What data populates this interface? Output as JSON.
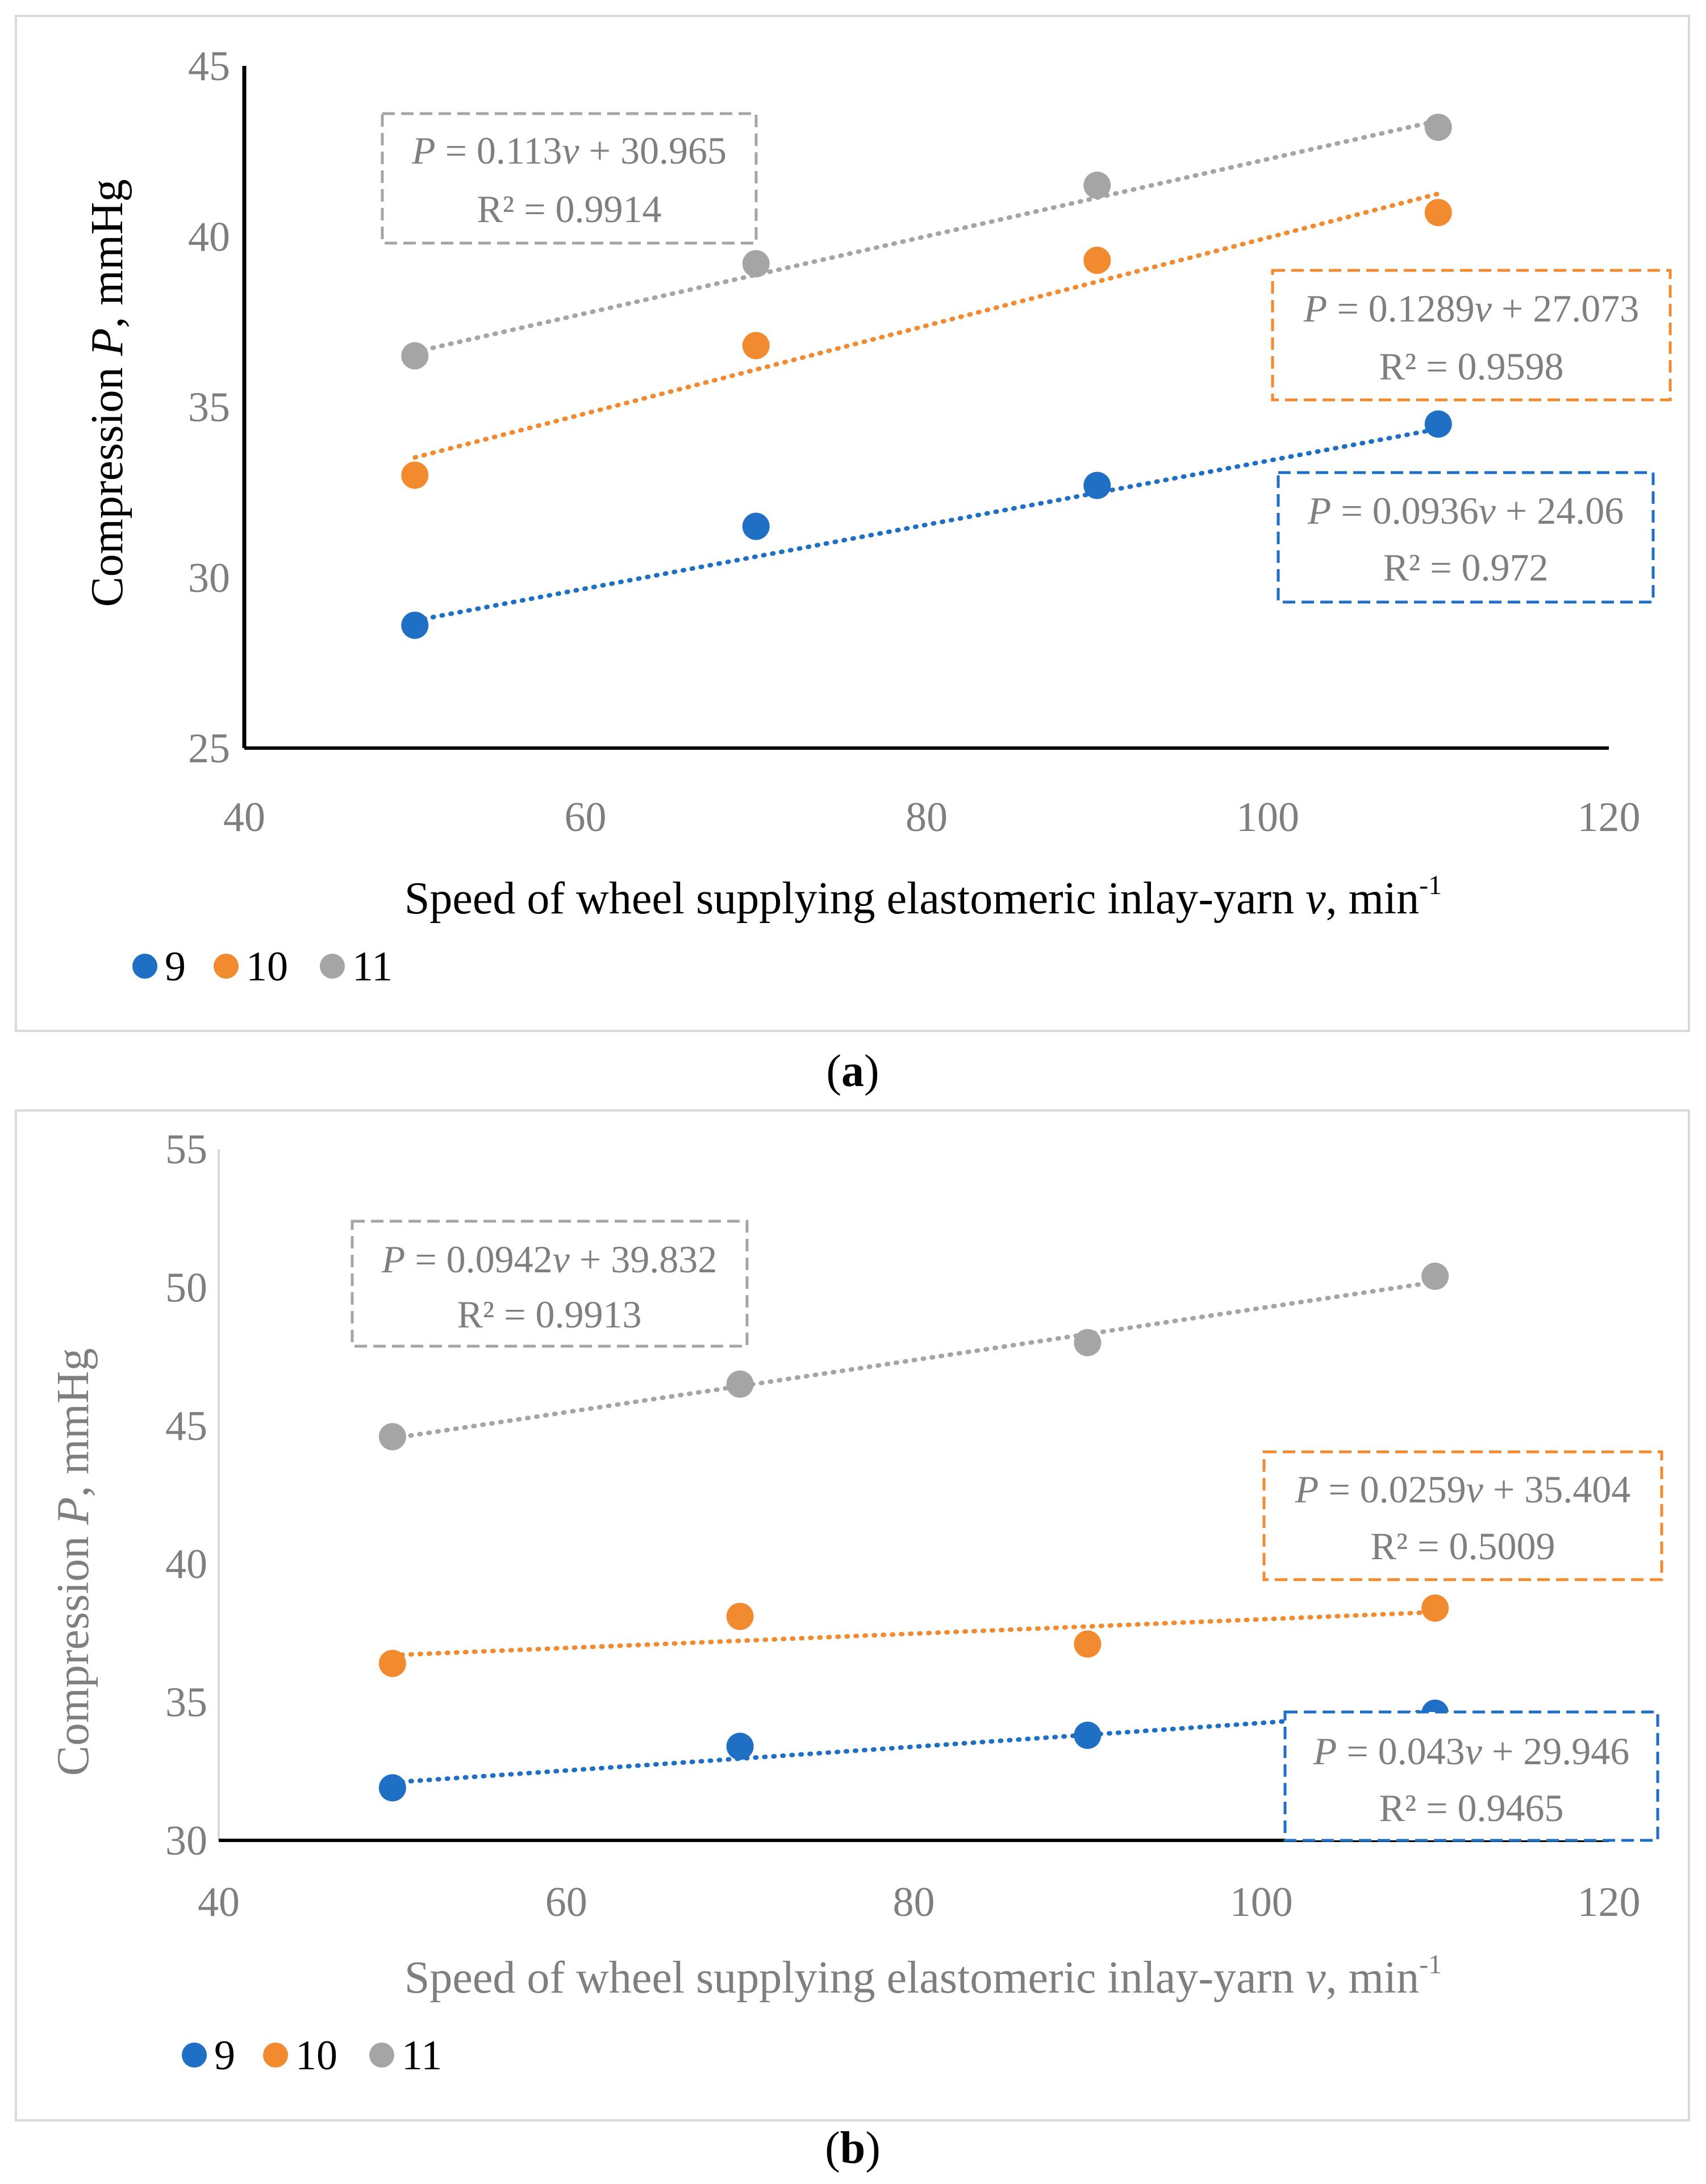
{
  "chart_data": [
    {
      "id": "a",
      "type": "scatter",
      "caption_open": "(",
      "caption_letter": "a",
      "caption_close": ")",
      "ylabel_pre": "Compression ",
      "ylabel_var": "P",
      "ylabel_post": ", mmHg",
      "ylabel_color": "#000000",
      "xlabel_pre": "Speed of wheel supplying elastomeric inlay-yarn ",
      "xlabel_var": "v",
      "xlabel_post": ", min",
      "xlabel_sup": "-1",
      "xlabel_color": "#000000",
      "xlim": [
        40,
        120
      ],
      "xticks": [
        40,
        60,
        80,
        100,
        120
      ],
      "ylim": [
        25,
        45
      ],
      "yticks": [
        25,
        30,
        35,
        40,
        45
      ],
      "axis_style": "left-bottom-black",
      "series": [
        {
          "name": "9",
          "color": "#1f6fc5",
          "x": [
            50,
            70,
            90,
            110
          ],
          "y": [
            28.6,
            31.5,
            32.7,
            34.5
          ],
          "trend": {
            "slope": 0.0936,
            "intercept": 24.06
          },
          "eq": {
            "p": "P",
            "eq1": " = 0.0936",
            "v": "v",
            "eq2": " + 24.06",
            "r2": "R² = 0.972"
          }
        },
        {
          "name": "10",
          "color": "#f28a30",
          "x": [
            50,
            70,
            90,
            110
          ],
          "y": [
            33.0,
            36.8,
            39.3,
            40.7
          ],
          "trend": {
            "slope": 0.1289,
            "intercept": 27.073
          },
          "eq": {
            "p": "P",
            "eq1": " = 0.1289",
            "v": "v",
            "eq2": " + 27.073",
            "r2": "R² = 0.9598"
          }
        },
        {
          "name": "11",
          "color": "#a5a5a5",
          "x": [
            50,
            70,
            90,
            110
          ],
          "y": [
            36.5,
            39.2,
            41.5,
            43.2
          ],
          "trend": {
            "slope": 0.113,
            "intercept": 30.965
          },
          "eq": {
            "p": "P",
            "eq1": " = 0.113",
            "v": "v",
            "eq2": " + 30.965",
            "r2": "R² = 0.9914"
          }
        }
      ]
    },
    {
      "id": "b",
      "type": "scatter",
      "caption_open": "(",
      "caption_letter": "b",
      "caption_close": ")",
      "ylabel_pre": "Compression ",
      "ylabel_var": "P",
      "ylabel_post": ", mmHg",
      "ylabel_color": "#7f7f7f",
      "xlabel_pre": "Speed of wheel supplying elastomeric inlay-yarn ",
      "xlabel_var": "v",
      "xlabel_post": ", min",
      "xlabel_sup": "-1",
      "xlabel_color": "#7f7f7f",
      "xlim": [
        40,
        120
      ],
      "xticks": [
        40,
        60,
        80,
        100,
        120
      ],
      "ylim": [
        30,
        55
      ],
      "yticks": [
        30,
        35,
        40,
        45,
        50,
        55
      ],
      "axis_style": "left-gray-bottom-black",
      "series": [
        {
          "name": "9",
          "color": "#1f6fc5",
          "x": [
            50,
            70,
            90,
            110
          ],
          "y": [
            31.9,
            33.4,
            33.8,
            34.6
          ],
          "trend": {
            "slope": 0.043,
            "intercept": 29.946
          },
          "eq": {
            "p": "P",
            "eq1": " = 0.043",
            "v": "v",
            "eq2": " + 29.946",
            "r2": "R² = 0.9465"
          }
        },
        {
          "name": "10",
          "color": "#f28a30",
          "x": [
            50,
            70,
            90,
            110
          ],
          "y": [
            36.4,
            38.1,
            37.1,
            38.4
          ],
          "trend": {
            "slope": 0.0259,
            "intercept": 35.404
          },
          "eq": {
            "p": "P",
            "eq1": " = 0.0259",
            "v": "v",
            "eq2": " + 35.404",
            "r2": "R² = 0.5009"
          }
        },
        {
          "name": "11",
          "color": "#a5a5a5",
          "x": [
            50,
            70,
            90,
            110
          ],
          "y": [
            44.6,
            46.5,
            48.0,
            50.4
          ],
          "trend": {
            "slope": 0.0942,
            "intercept": 39.832
          },
          "eq": {
            "p": "P",
            "eq1": " = 0.0942",
            "v": "v",
            "eq2": " + 39.832",
            "r2": "R² = 0.9913"
          }
        }
      ]
    }
  ]
}
